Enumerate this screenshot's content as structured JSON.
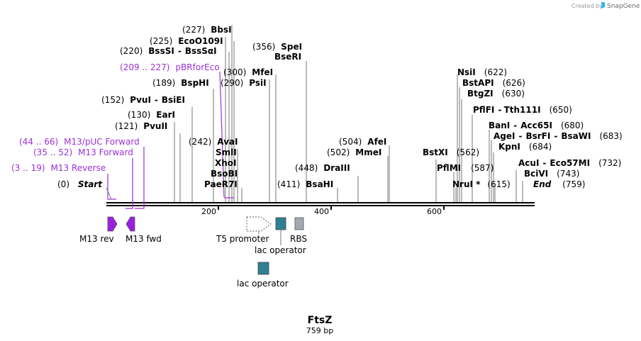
{
  "credit": {
    "prefix": "Created by",
    "brand": "SnapGene"
  },
  "sequence": {
    "name": "FtsZ",
    "length_label": "759 bp",
    "length": 759
  },
  "axis": {
    "ticks": [
      200,
      400,
      600
    ]
  },
  "ends": {
    "start": {
      "pos": "(0)",
      "name": "Start"
    },
    "end": {
      "pos": "(759)",
      "name": "End"
    }
  },
  "sites": [
    {
      "pos": "(227)",
      "name": "BbsI"
    },
    {
      "pos": "(225)",
      "name": "EcoO109I"
    },
    {
      "pos": "(220)",
      "name": "BssSI",
      "sep": "-",
      "name2": "BssSαI"
    },
    {
      "pos": "(300)",
      "name": "MfeI"
    },
    {
      "pos": "(290)",
      "name": "PsiI"
    },
    {
      "pos": "(189)",
      "name": "BspHI"
    },
    {
      "pos": "(152)",
      "name": "PvuI",
      "sep": "-",
      "name2": "BsiEI"
    },
    {
      "pos": "(130)",
      "name": "EarI"
    },
    {
      "pos": "(121)",
      "name": "PvuII"
    },
    {
      "pos": "(242)",
      "name": "AvaI"
    },
    {
      "pos": "",
      "name": "SmlI"
    },
    {
      "pos": "",
      "name": "XhoI"
    },
    {
      "pos": "",
      "name": "BsoBI"
    },
    {
      "pos": "",
      "name": "PaeR7I"
    },
    {
      "pos": "(356)",
      "name": "SpeI"
    },
    {
      "pos": "",
      "name": "BseRI"
    },
    {
      "pos": "(448)",
      "name": "DraIII"
    },
    {
      "pos": "(411)",
      "name": "BsaHI"
    },
    {
      "pos": "(504)",
      "name": "AfeI"
    },
    {
      "pos": "(502)",
      "name": "MmeI"
    },
    {
      "pos": "(622)",
      "name": "NsiI"
    },
    {
      "pos": "(626)",
      "name": "BstAPI"
    },
    {
      "pos": "(630)",
      "name": "BtgZI"
    },
    {
      "pos": "(650)",
      "name": "PflFI",
      "sep": "-",
      "name2": "Tth111I"
    },
    {
      "pos": "(680)",
      "name": "BanI",
      "sep": "-",
      "name2": "Acc65I"
    },
    {
      "pos": "(683)",
      "name": "AgeI",
      "sep": "-",
      "name2": "BsrFI",
      "sep2": "-",
      "name3": "BsaWI"
    },
    {
      "pos": "(684)",
      "name": "KpnI"
    },
    {
      "pos": "(732)",
      "name": "AcuI",
      "sep": "-",
      "name2": "Eco57MI"
    },
    {
      "pos": "(743)",
      "name": "BciVI"
    },
    {
      "pos": "(562)",
      "name": "BstXI"
    },
    {
      "pos": "(587)",
      "name": "PflMI"
    },
    {
      "pos": "(615)",
      "name": "NruI *"
    }
  ],
  "primers": [
    {
      "pos": "(209 .. 227)",
      "name": "pBRforEco"
    },
    {
      "pos": "(44 .. 66)",
      "name": "M13/pUC Forward"
    },
    {
      "pos": "(35 .. 52)",
      "name": "M13 Forward"
    },
    {
      "pos": "(3 .. 19)",
      "name": "M13 Reverse"
    }
  ],
  "features": [
    {
      "name": "M13 rev",
      "color": "#9b1fe0"
    },
    {
      "name": "M13 fwd",
      "color": "#9b1fe0"
    },
    {
      "name": "T5 promoter",
      "color": "#ffffff"
    },
    {
      "name": "lac operator",
      "color": "#2f7f95"
    },
    {
      "name": "RBS",
      "color": "#a3a9b0"
    },
    {
      "name": "lac operator",
      "color": "#2f7f95"
    }
  ],
  "colors": {
    "primer": "#9b30d9",
    "backbone": "#000000",
    "connector": "#777777"
  }
}
